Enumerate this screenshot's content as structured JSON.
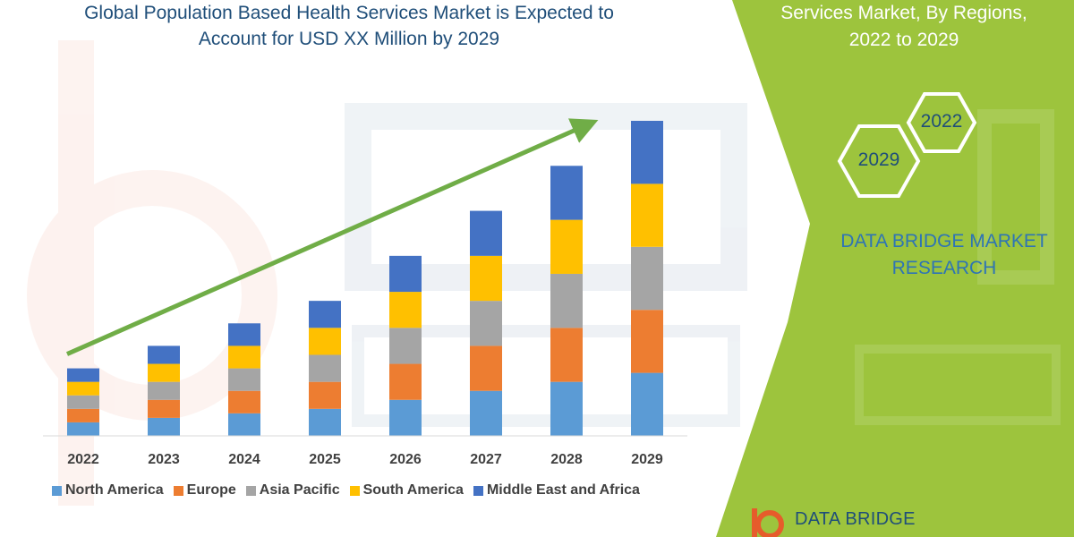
{
  "title_lines": [
    "Global Population Based Health Services Market is Expected to",
    "Account for USD XX Million by 2029"
  ],
  "side_panel": {
    "title_lines": [
      "Services Market, By Regions,",
      "2022 to 2029"
    ],
    "hex_start": "2029",
    "hex_end": "2022",
    "brand_lines": [
      "DATA BRIDGE MARKET",
      "RESEARCH"
    ],
    "logo_text": "DATA BRIDGE",
    "accent_color": "#9dc43d"
  },
  "chart_data": {
    "type": "bar",
    "stacked": true,
    "categories": [
      "2022",
      "2023",
      "2024",
      "2025",
      "2026",
      "2027",
      "2028",
      "2029"
    ],
    "ylim": [
      0,
      35
    ],
    "y_axis_visible": false,
    "trend_arrow": true,
    "legend_position": "bottom",
    "series": [
      {
        "name": "North America",
        "color": "#5b9bd5",
        "values": [
          1.5,
          2.0,
          2.5,
          3.0,
          4.0,
          5.0,
          6.0,
          7.0
        ]
      },
      {
        "name": "Europe",
        "color": "#ed7d31",
        "values": [
          1.5,
          2.0,
          2.5,
          3.0,
          4.0,
          5.0,
          6.0,
          7.0
        ]
      },
      {
        "name": "Asia Pacific",
        "color": "#a5a5a5",
        "values": [
          1.5,
          2.0,
          2.5,
          3.0,
          4.0,
          5.0,
          6.0,
          7.0
        ]
      },
      {
        "name": "South America",
        "color": "#ffc000",
        "values": [
          1.5,
          2.0,
          2.5,
          3.0,
          4.0,
          5.0,
          6.0,
          7.0
        ]
      },
      {
        "name": "Middle East and Africa",
        "color": "#4472c4",
        "values": [
          1.5,
          2.0,
          2.5,
          3.0,
          4.0,
          5.0,
          6.0,
          7.0
        ]
      }
    ]
  }
}
